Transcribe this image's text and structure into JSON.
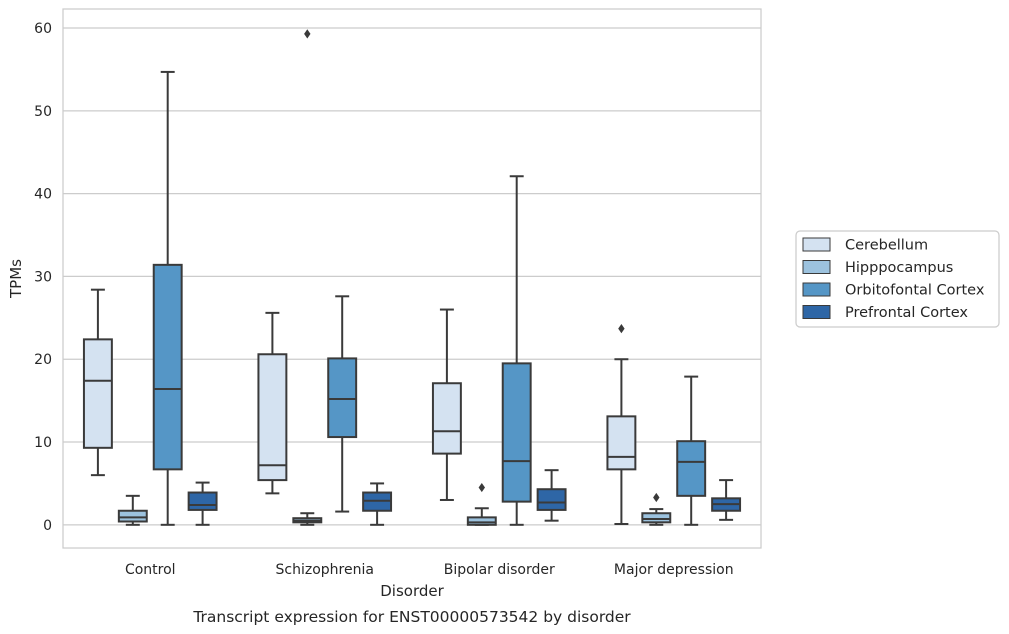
{
  "chart_data": {
    "type": "box",
    "title": "",
    "caption": "Transcript expression for ENST00000573542 by disorder",
    "xlabel": "Disorder",
    "ylabel": "TPMs",
    "ylim": [
      -2.8,
      62.3
    ],
    "yticks": [
      0,
      10,
      20,
      30,
      40,
      50,
      60
    ],
    "grid": true,
    "legend_position": "right",
    "categories": [
      "Control",
      "Schizophrenia",
      "Bipolar disorder",
      "Major depression"
    ],
    "series": [
      {
        "name": "Cerebellum",
        "color": "#d4e2f1",
        "boxes": [
          {
            "whisker_low": 6.0,
            "q1": 9.3,
            "median": 17.4,
            "q3": 22.4,
            "whisker_high": 28.4,
            "outliers": []
          },
          {
            "whisker_low": 3.8,
            "q1": 5.4,
            "median": 7.2,
            "q3": 20.6,
            "whisker_high": 25.6,
            "outliers": []
          },
          {
            "whisker_low": 3.0,
            "q1": 8.6,
            "median": 11.3,
            "q3": 17.1,
            "whisker_high": 26.0,
            "outliers": []
          },
          {
            "whisker_low": 0.1,
            "q1": 6.7,
            "median": 8.2,
            "q3": 13.1,
            "whisker_high": 20.0,
            "outliers": [
              23.7
            ]
          }
        ]
      },
      {
        "name": "Hipppocampus",
        "color": "#9cc2de",
        "boxes": [
          {
            "whisker_low": 0.0,
            "q1": 0.4,
            "median": 0.9,
            "q3": 1.7,
            "whisker_high": 3.5,
            "outliers": []
          },
          {
            "whisker_low": 0.0,
            "q1": 0.3,
            "median": 0.5,
            "q3": 0.8,
            "whisker_high": 1.4,
            "outliers": [
              59.3
            ]
          },
          {
            "whisker_low": 0.0,
            "q1": 0.0,
            "median": 0.3,
            "q3": 0.9,
            "whisker_high": 2.0,
            "outliers": [
              4.5
            ]
          },
          {
            "whisker_low": 0.0,
            "q1": 0.3,
            "median": 0.7,
            "q3": 1.4,
            "whisker_high": 1.9,
            "outliers": [
              3.3
            ]
          }
        ]
      },
      {
        "name": "Orbitofontal Cortex",
        "color": "#5596c6",
        "boxes": [
          {
            "whisker_low": 0.0,
            "q1": 6.7,
            "median": 16.4,
            "q3": 31.4,
            "whisker_high": 54.7,
            "outliers": []
          },
          {
            "whisker_low": 1.6,
            "q1": 10.6,
            "median": 15.2,
            "q3": 20.1,
            "whisker_high": 27.6,
            "outliers": []
          },
          {
            "whisker_low": 0.0,
            "q1": 2.8,
            "median": 7.7,
            "q3": 19.5,
            "whisker_high": 42.1,
            "outliers": []
          },
          {
            "whisker_low": 0.0,
            "q1": 3.5,
            "median": 7.6,
            "q3": 10.1,
            "whisker_high": 17.9,
            "outliers": []
          }
        ]
      },
      {
        "name": "Prefrontal Cortex",
        "color": "#2e66a6",
        "boxes": [
          {
            "whisker_low": 0.0,
            "q1": 1.8,
            "median": 2.4,
            "q3": 3.9,
            "whisker_high": 5.1,
            "outliers": []
          },
          {
            "whisker_low": 0.0,
            "q1": 1.7,
            "median": 2.9,
            "q3": 3.9,
            "whisker_high": 5.0,
            "outliers": []
          },
          {
            "whisker_low": 0.5,
            "q1": 1.8,
            "median": 2.7,
            "q3": 4.3,
            "whisker_high": 6.6,
            "outliers": []
          },
          {
            "whisker_low": 0.6,
            "q1": 1.7,
            "median": 2.5,
            "q3": 3.2,
            "whisker_high": 5.4,
            "outliers": []
          }
        ]
      }
    ]
  }
}
